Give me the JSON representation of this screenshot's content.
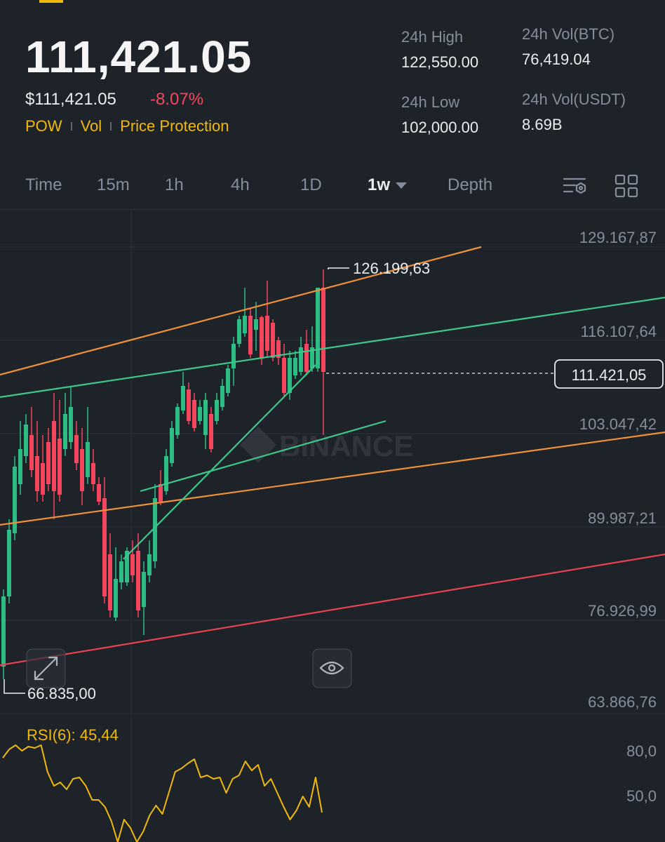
{
  "ticker": {
    "last_price": "111,421.05",
    "last_price_usd": "$111,421.05",
    "change": "-8.07%",
    "tags": [
      "POW",
      "Vol",
      "Price Protection"
    ]
  },
  "stats": {
    "high_label": "24h High",
    "high_value": "122,550.00",
    "low_label": "24h Low",
    "low_value": "102,000.00",
    "vol_btc_label": "24h Vol(BTC)",
    "vol_btc_value": "76,419.04",
    "vol_usdt_label": "24h Vol(USDT)",
    "vol_usdt_value": "8.69B"
  },
  "tabs": [
    {
      "label": "Time"
    },
    {
      "label": "15m"
    },
    {
      "label": "1h"
    },
    {
      "label": "4h"
    },
    {
      "label": "1D"
    },
    {
      "label": "1w"
    },
    {
      "label": "Depth"
    }
  ],
  "chart": {
    "price_axis": [
      "129.167,87",
      "116.107,64",
      "103.047,42",
      "89.987,21",
      "76.926,99",
      "63.866,76"
    ],
    "high_marker": "126.199,63",
    "low_marker": "66.835,00",
    "current_price_tag": "111.421,05",
    "watermark": "BINANCE",
    "rsi_label": "RSI(6): 45,44",
    "rsi_axis": [
      "80,0",
      "50,0"
    ],
    "colors": {
      "up": "#2ebd85",
      "down": "#f6465d",
      "orange_trend": "#f0913a",
      "green_trend": "#3ec78b",
      "red_trend": "#e8414f",
      "rsi_line": "#f0b90b"
    }
  }
}
